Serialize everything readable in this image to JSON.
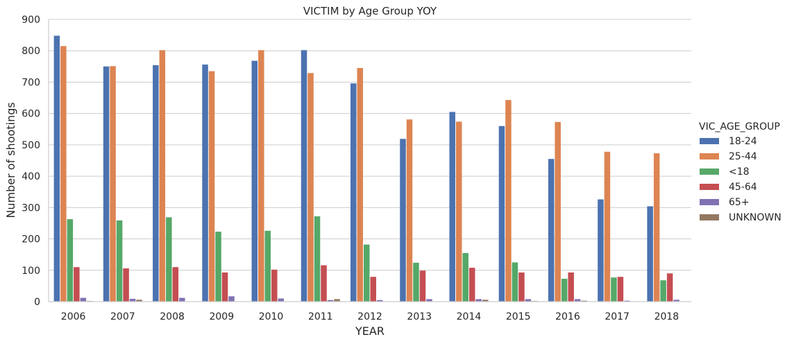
{
  "chart_data": {
    "type": "bar",
    "title": "VICTIM by Age Group YOY",
    "xlabel": "YEAR",
    "ylabel": "Number of shootings",
    "ylim": [
      0,
      900
    ],
    "yticks": [
      "0",
      "100",
      "200",
      "300",
      "400",
      "500",
      "600",
      "700",
      "800",
      "900"
    ],
    "grid": "horizontal",
    "legend_title": "VIC_AGE_GROUP",
    "legend_placement": "right",
    "categories": [
      "2006",
      "2007",
      "2008",
      "2009",
      "2010",
      "2011",
      "2012",
      "2013",
      "2014",
      "2015",
      "2016",
      "2017",
      "2018"
    ],
    "series": [
      {
        "name": "18-24",
        "color": "#4c72b0",
        "values": [
          848,
          750,
          754,
          756,
          768,
          802,
          696,
          519,
          605,
          560,
          455,
          326,
          304
        ]
      },
      {
        "name": "25-44",
        "color": "#dd8452",
        "values": [
          815,
          751,
          802,
          735,
          802,
          729,
          745,
          581,
          574,
          643,
          573,
          478,
          473
        ]
      },
      {
        "name": "<18",
        "color": "#55a868",
        "values": [
          263,
          259,
          269,
          223,
          226,
          272,
          182,
          124,
          155,
          125,
          73,
          77,
          68
        ]
      },
      {
        "name": "45-64",
        "color": "#c44e52",
        "values": [
          110,
          106,
          110,
          93,
          102,
          116,
          79,
          99,
          108,
          93,
          93,
          79,
          90
        ]
      },
      {
        "name": "65+",
        "color": "#8172b3",
        "values": [
          12,
          9,
          12,
          17,
          10,
          5,
          5,
          8,
          8,
          8,
          8,
          3,
          6
        ]
      },
      {
        "name": "UNKNOWN",
        "color": "#937860",
        "values": [
          2,
          6,
          1,
          1,
          1,
          8,
          1,
          1,
          6,
          2,
          3,
          1,
          1
        ]
      }
    ]
  }
}
